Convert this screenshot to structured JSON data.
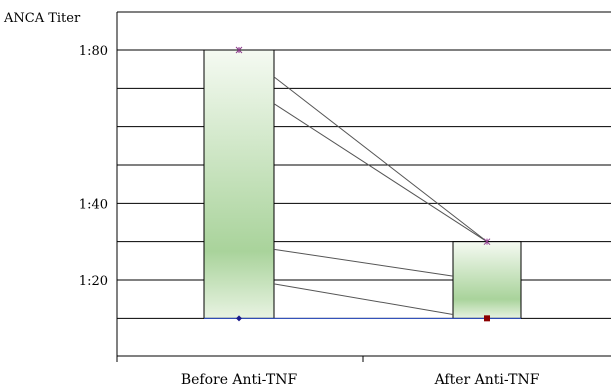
{
  "chart_data": {
    "type": "bar",
    "ylabel": "ANCA Titer",
    "categories": [
      "Before Anti-TNF",
      "After Anti-TNF"
    ],
    "y_tick_labels": [
      {
        "label": "1:80",
        "value": 80
      },
      {
        "label": "1:40",
        "value": 40
      },
      {
        "label": "1:20",
        "value": 20
      }
    ],
    "ylim": [
      0,
      90
    ],
    "grid": true,
    "bars": [
      {
        "category": "Before Anti-TNF",
        "low": 10,
        "high": 80
      },
      {
        "category": "After Anti-TNF",
        "low": 10,
        "high": 30
      }
    ],
    "paired_lines": [
      {
        "before": 73,
        "after": 30
      },
      {
        "before": 66,
        "after": 30
      },
      {
        "before": 28,
        "after": 21
      },
      {
        "before": 19,
        "after": 11
      }
    ],
    "markers": {
      "before_max": 80,
      "before_min": 10,
      "after_max": 30,
      "after_min": 10
    },
    "colors": {
      "bar_edge": "#e8f3e2",
      "bar_mid": "#a9d39b",
      "bar_border": "#000000",
      "grid": "#000000",
      "pair_line": "#555555",
      "marker_top": "#8b3a8b",
      "marker_bottom_before": "#1a1a8c",
      "marker_bottom_after": "#8b0000",
      "baseline": "#3355cc"
    }
  }
}
